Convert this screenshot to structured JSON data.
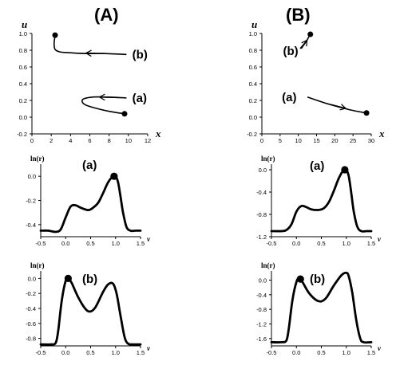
{
  "figure": {
    "panel_a_label": "(A)",
    "panel_b_label": "(B)"
  },
  "chart_data": [
    {
      "id": "A-top",
      "type": "line",
      "xlabel": "x",
      "ylabel": "u",
      "xlim": [
        0,
        12
      ],
      "ylim": [
        -0.2,
        1.0
      ],
      "xticks": [
        0,
        2,
        4,
        6,
        8,
        10,
        12
      ],
      "yticks": [
        -0.2,
        0.0,
        0.2,
        0.4,
        0.6,
        0.8,
        1.0
      ],
      "series": [
        {
          "name": "(b)",
          "x": [
            2.4,
            2.3,
            2.4,
            2.9,
            3.8,
            5.5,
            7.5,
            9.8
          ],
          "y": [
            0.98,
            0.88,
            0.81,
            0.78,
            0.77,
            0.76,
            0.76,
            0.75
          ]
        },
        {
          "name": "(a)",
          "x": [
            9.6,
            8.0,
            6.5,
            5.5,
            5.2,
            5.4,
            6.3,
            7.8,
            9.8
          ],
          "y": [
            0.04,
            0.07,
            0.11,
            0.15,
            0.19,
            0.22,
            0.24,
            0.24,
            0.23
          ]
        }
      ]
    },
    {
      "id": "B-top",
      "type": "line",
      "xlabel": "x",
      "ylabel": "u",
      "xlim": [
        0,
        30
      ],
      "ylim": [
        -0.2,
        1.0
      ],
      "xticks": [
        0,
        5,
        10,
        15,
        20,
        25,
        30
      ],
      "yticks": [
        -0.2,
        0.0,
        0.2,
        0.4,
        0.6,
        0.8,
        1.0
      ],
      "series": [
        {
          "name": "(b)",
          "x": [
            10.5,
            11.5,
            12.5,
            13.2
          ],
          "y": [
            0.82,
            0.87,
            0.93,
            0.99
          ]
        },
        {
          "name": "(a)",
          "x": [
            12.5,
            18.0,
            24.0,
            28.7
          ],
          "y": [
            0.24,
            0.16,
            0.09,
            0.05
          ]
        }
      ]
    },
    {
      "id": "A-mid",
      "type": "line",
      "subplot_label": "(a)",
      "xlabel": "v",
      "ylabel": "ln(r)",
      "xlim": [
        -0.5,
        1.5
      ],
      "ylim": [
        -0.5,
        0.1
      ],
      "xticks": [
        -0.5,
        0.0,
        0.5,
        1.0,
        1.5
      ],
      "yticks": [
        -0.4,
        -0.2,
        0.0
      ],
      "series": [
        {
          "x": [
            -0.5,
            -0.35,
            -0.2,
            -0.1,
            0.0,
            0.1,
            0.2,
            0.3,
            0.45,
            0.55,
            0.65,
            0.75,
            0.85,
            0.95,
            1.0,
            1.05,
            1.1,
            1.15,
            1.22,
            1.3,
            1.4,
            1.5
          ],
          "y": [
            -0.45,
            -0.45,
            -0.46,
            -0.44,
            -0.34,
            -0.25,
            -0.24,
            -0.26,
            -0.28,
            -0.26,
            -0.22,
            -0.14,
            -0.05,
            0.0,
            0.0,
            -0.05,
            -0.17,
            -0.3,
            -0.42,
            -0.45,
            -0.45,
            -0.45
          ]
        }
      ],
      "marker": {
        "x": 0.97,
        "y": 0.0
      }
    },
    {
      "id": "B-mid",
      "type": "line",
      "subplot_label": "(a)",
      "xlabel": "v",
      "ylabel": "ln(r)",
      "xlim": [
        -0.5,
        1.5
      ],
      "ylim": [
        -1.2,
        0.1
      ],
      "xticks": [
        -0.5,
        0.0,
        0.5,
        1.0,
        1.5
      ],
      "yticks": [
        -1.2,
        -0.8,
        -0.4,
        0.0
      ],
      "series": [
        {
          "x": [
            -0.5,
            -0.3,
            -0.2,
            -0.1,
            0.0,
            0.1,
            0.2,
            0.3,
            0.45,
            0.55,
            0.65,
            0.75,
            0.85,
            0.95,
            1.0,
            1.05,
            1.1,
            1.15,
            1.22,
            1.3,
            1.4,
            1.5
          ],
          "y": [
            -1.1,
            -1.1,
            -1.08,
            -0.98,
            -0.75,
            -0.65,
            -0.67,
            -0.71,
            -0.72,
            -0.69,
            -0.58,
            -0.38,
            -0.15,
            0.0,
            0.0,
            -0.12,
            -0.42,
            -0.75,
            -1.02,
            -1.1,
            -1.1,
            -1.1
          ]
        }
      ],
      "marker": {
        "x": 0.97,
        "y": 0.0
      }
    },
    {
      "id": "A-bot",
      "type": "line",
      "subplot_label": "(b)",
      "xlabel": "v",
      "ylabel": "ln(r)",
      "xlim": [
        -0.5,
        1.5
      ],
      "ylim": [
        -0.9,
        0.1
      ],
      "xticks": [
        -0.5,
        0.0,
        0.5,
        1.0,
        1.5
      ],
      "yticks": [
        -0.8,
        -0.6,
        -0.4,
        -0.2,
        0.0
      ],
      "series": [
        {
          "x": [
            -0.5,
            -0.3,
            -0.2,
            -0.15,
            -0.08,
            0.0,
            0.05,
            0.12,
            0.25,
            0.4,
            0.5,
            0.6,
            0.75,
            0.85,
            0.95,
            1.02,
            1.1,
            1.18,
            1.25,
            1.35,
            1.5
          ],
          "y": [
            -0.88,
            -0.88,
            -0.86,
            -0.7,
            -0.3,
            -0.03,
            0.0,
            -0.06,
            -0.25,
            -0.41,
            -0.44,
            -0.38,
            -0.18,
            -0.08,
            -0.07,
            -0.2,
            -0.5,
            -0.78,
            -0.87,
            -0.88,
            -0.88
          ]
        }
      ],
      "marker": {
        "x": 0.05,
        "y": 0.0
      }
    },
    {
      "id": "B-bot",
      "type": "line",
      "subplot_label": "(b)",
      "xlabel": "v",
      "ylabel": "ln(r)",
      "xlim": [
        -0.5,
        1.5
      ],
      "ylim": [
        -1.8,
        0.25
      ],
      "xticks": [
        -0.5,
        0.0,
        0.5,
        1.0,
        1.5
      ],
      "yticks": [
        -1.6,
        -1.2,
        -0.8,
        -0.4,
        0.0
      ],
      "series": [
        {
          "x": [
            -0.5,
            -0.3,
            -0.2,
            -0.15,
            -0.08,
            0.0,
            0.05,
            0.12,
            0.25,
            0.4,
            0.5,
            0.6,
            0.75,
            0.9,
            1.0,
            1.05,
            1.12,
            1.2,
            1.28,
            1.35,
            1.5
          ],
          "y": [
            -1.7,
            -1.7,
            -1.65,
            -1.3,
            -0.55,
            -0.05,
            0.03,
            -0.05,
            -0.35,
            -0.55,
            -0.58,
            -0.48,
            -0.15,
            0.13,
            0.2,
            0.1,
            -0.35,
            -1.1,
            -1.6,
            -1.7,
            -1.7
          ]
        }
      ],
      "marker": {
        "x": 0.08,
        "y": 0.03
      }
    }
  ]
}
